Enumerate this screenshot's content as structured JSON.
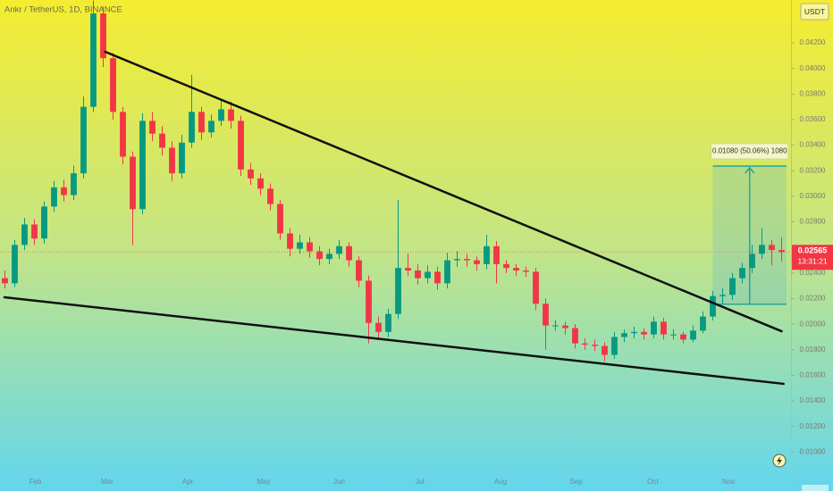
{
  "chart_data": {
    "type": "candlestick",
    "title": "Ankr / TetherUS, 1D, BINANCE",
    "currency": "USDT",
    "last_price": 0.02565,
    "last_price_label": "0.02565",
    "countdown": "13:31:21",
    "up_color": "#089981",
    "down_color": "#f23645",
    "xlim": [
      0,
      80
    ],
    "xticks": [
      {
        "value": 3.6,
        "label": "Feb"
      },
      {
        "value": 10.9,
        "label": "Mar"
      },
      {
        "value": 19.1,
        "label": "Apr"
      },
      {
        "value": 26.8,
        "label": "May"
      },
      {
        "value": 34.5,
        "label": "Jun"
      },
      {
        "value": 42.7,
        "label": "Jul"
      },
      {
        "value": 50.9,
        "label": "Aug"
      },
      {
        "value": 58.6,
        "label": "Sep"
      },
      {
        "value": 66.4,
        "label": "Oct"
      },
      {
        "value": 74.1,
        "label": "Nov"
      }
    ],
    "ylim": [
      0.00696,
      0.04535
    ],
    "yticks": [
      {
        "value": 0.042,
        "label": "0.04200"
      },
      {
        "value": 0.04,
        "label": "0.04000"
      },
      {
        "value": 0.038,
        "label": "0.03800"
      },
      {
        "value": 0.036,
        "label": "0.03600"
      },
      {
        "value": 0.034,
        "label": "0.03400"
      },
      {
        "value": 0.032,
        "label": "0.03200"
      },
      {
        "value": 0.03,
        "label": "0.03000"
      },
      {
        "value": 0.028,
        "label": "0.02800"
      },
      {
        "value": 0.024,
        "label": "0.02400"
      },
      {
        "value": 0.022,
        "label": "0.02200"
      },
      {
        "value": 0.02,
        "label": "0.02000"
      },
      {
        "value": 0.018,
        "label": "0.01800"
      },
      {
        "value": 0.016,
        "label": "0.01600"
      },
      {
        "value": 0.014,
        "label": "0.01400"
      },
      {
        "value": 0.012,
        "label": "0.01200"
      },
      {
        "value": 0.01,
        "label": "0.01000"
      }
    ],
    "candles": [
      [
        0.0236,
        0.0242,
        0.0228,
        0.0232
      ],
      [
        0.0232,
        0.0266,
        0.0229,
        0.0262
      ],
      [
        0.0262,
        0.0283,
        0.0258,
        0.0278
      ],
      [
        0.0278,
        0.0282,
        0.0262,
        0.0267
      ],
      [
        0.0267,
        0.0296,
        0.0263,
        0.0292
      ],
      [
        0.0292,
        0.0312,
        0.0288,
        0.0307
      ],
      [
        0.0307,
        0.0313,
        0.0296,
        0.0301
      ],
      [
        0.0301,
        0.0324,
        0.0297,
        0.0318
      ],
      [
        0.0318,
        0.0378,
        0.0314,
        0.037
      ],
      [
        0.037,
        0.0453,
        0.0366,
        0.0443
      ],
      [
        0.0443,
        0.0448,
        0.0401,
        0.0408
      ],
      [
        0.0408,
        0.0412,
        0.036,
        0.0366
      ],
      [
        0.0366,
        0.037,
        0.0325,
        0.0331
      ],
      [
        0.0331,
        0.0335,
        0.0262,
        0.029
      ],
      [
        0.029,
        0.0365,
        0.0286,
        0.0359
      ],
      [
        0.0359,
        0.0366,
        0.0343,
        0.0349
      ],
      [
        0.0349,
        0.0355,
        0.0332,
        0.0338
      ],
      [
        0.0338,
        0.0343,
        0.0312,
        0.0318
      ],
      [
        0.0318,
        0.0348,
        0.0314,
        0.0342
      ],
      [
        0.0342,
        0.0395,
        0.0338,
        0.0366
      ],
      [
        0.0366,
        0.037,
        0.0344,
        0.035
      ],
      [
        0.035,
        0.0364,
        0.0346,
        0.0359
      ],
      [
        0.0359,
        0.0376,
        0.0355,
        0.0368
      ],
      [
        0.0368,
        0.0374,
        0.0353,
        0.0359
      ],
      [
        0.0359,
        0.0363,
        0.0316,
        0.0321
      ],
      [
        0.0321,
        0.0326,
        0.0309,
        0.0314
      ],
      [
        0.0314,
        0.0318,
        0.0301,
        0.0306
      ],
      [
        0.0306,
        0.031,
        0.0289,
        0.0294
      ],
      [
        0.0294,
        0.0297,
        0.0266,
        0.0271
      ],
      [
        0.0271,
        0.0275,
        0.0253,
        0.0259
      ],
      [
        0.0259,
        0.027,
        0.0255,
        0.0264
      ],
      [
        0.0264,
        0.0268,
        0.0252,
        0.0257
      ],
      [
        0.0257,
        0.0261,
        0.0246,
        0.0251
      ],
      [
        0.0251,
        0.0259,
        0.0247,
        0.0255
      ],
      [
        0.0255,
        0.0266,
        0.0251,
        0.0261
      ],
      [
        0.0261,
        0.0264,
        0.0245,
        0.025
      ],
      [
        0.025,
        0.0253,
        0.0229,
        0.0234
      ],
      [
        0.0234,
        0.0238,
        0.0185,
        0.0201
      ],
      [
        0.0201,
        0.0206,
        0.0189,
        0.0194
      ],
      [
        0.0194,
        0.0212,
        0.019,
        0.0208
      ],
      [
        0.0208,
        0.0297,
        0.0204,
        0.0244
      ],
      [
        0.0244,
        0.0255,
        0.0238,
        0.0242
      ],
      [
        0.0242,
        0.0247,
        0.0231,
        0.0236
      ],
      [
        0.0236,
        0.0246,
        0.0232,
        0.0241
      ],
      [
        0.0241,
        0.0245,
        0.0227,
        0.0232
      ],
      [
        0.0232,
        0.0256,
        0.0228,
        0.025
      ],
      [
        0.025,
        0.0257,
        0.0245,
        0.0251
      ],
      [
        0.0251,
        0.0255,
        0.0245,
        0.025
      ],
      [
        0.025,
        0.0253,
        0.0242,
        0.0247
      ],
      [
        0.0247,
        0.027,
        0.0243,
        0.0261
      ],
      [
        0.0261,
        0.0265,
        0.0232,
        0.0247
      ],
      [
        0.0247,
        0.025,
        0.024,
        0.0244
      ],
      [
        0.0244,
        0.0247,
        0.0238,
        0.0242
      ],
      [
        0.0242,
        0.0245,
        0.0237,
        0.0241
      ],
      [
        0.0241,
        0.0244,
        0.0211,
        0.0216
      ],
      [
        0.0216,
        0.022,
        0.018,
        0.0199
      ],
      [
        0.0199,
        0.0203,
        0.0195,
        0.0199
      ],
      [
        0.0199,
        0.0202,
        0.0192,
        0.0197
      ],
      [
        0.0197,
        0.02,
        0.0181,
        0.0185
      ],
      [
        0.0185,
        0.0189,
        0.018,
        0.0184
      ],
      [
        0.0184,
        0.0188,
        0.0179,
        0.0183
      ],
      [
        0.0183,
        0.0186,
        0.0171,
        0.0176
      ],
      [
        0.0176,
        0.0194,
        0.0173,
        0.019
      ],
      [
        0.019,
        0.0196,
        0.0186,
        0.0193
      ],
      [
        0.0193,
        0.0198,
        0.0189,
        0.0194
      ],
      [
        0.0194,
        0.0197,
        0.0188,
        0.0192
      ],
      [
        0.0192,
        0.0206,
        0.0189,
        0.0202
      ],
      [
        0.0202,
        0.0205,
        0.0188,
        0.0192
      ],
      [
        0.0192,
        0.0196,
        0.0188,
        0.0192
      ],
      [
        0.0192,
        0.0194,
        0.0185,
        0.0188
      ],
      [
        0.0188,
        0.0199,
        0.0186,
        0.0195
      ],
      [
        0.0195,
        0.021,
        0.0193,
        0.0206
      ],
      [
        0.0206,
        0.0226,
        0.0203,
        0.0222
      ],
      [
        0.0222,
        0.0228,
        0.0216,
        0.0223
      ],
      [
        0.0223,
        0.024,
        0.0219,
        0.0236
      ],
      [
        0.0236,
        0.0248,
        0.0232,
        0.0244
      ],
      [
        0.0244,
        0.0262,
        0.024,
        0.0255
      ],
      [
        0.0255,
        0.0275,
        0.0251,
        0.0262
      ],
      [
        0.0262,
        0.0266,
        0.0246,
        0.0258
      ],
      [
        0.0258,
        0.0268,
        0.0249,
        0.02565
      ]
    ],
    "trendlines": [
      {
        "x": [
          10.7,
          79.5
        ],
        "y": [
          0.0413,
          0.01945
        ]
      },
      {
        "x": [
          0.45,
          79.7
        ],
        "y": [
          0.02211,
          0.01534
        ]
      }
    ],
    "measure": {
      "x": [
        72.5,
        80
      ],
      "y": [
        0.02157,
        0.03237
      ],
      "label": "0.01080 (50.06%) 1080"
    }
  }
}
